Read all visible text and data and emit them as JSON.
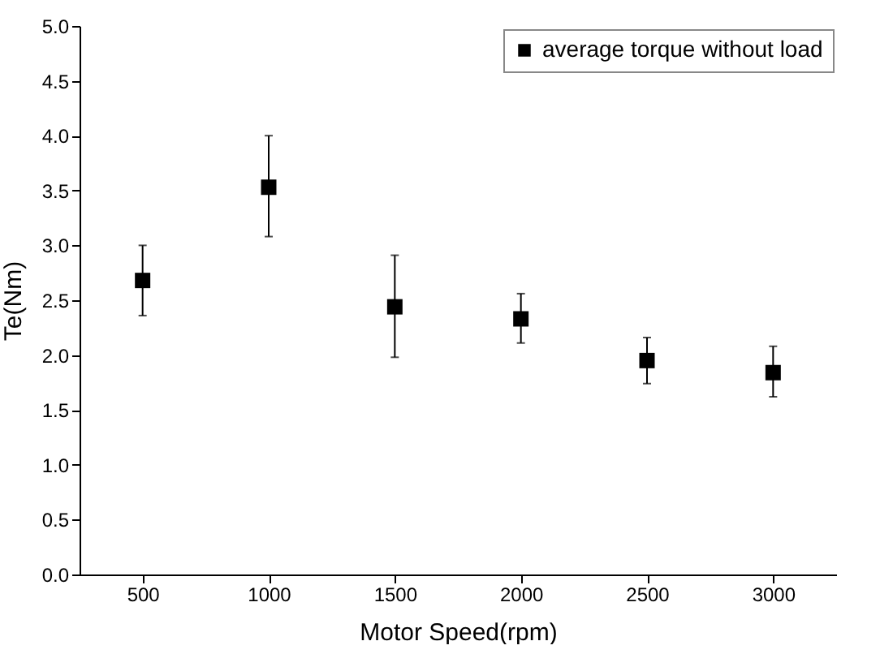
{
  "chart_data": {
    "type": "scatter",
    "xlabel": "Motor Speed(rpm)",
    "ylabel": "Te(Nm)",
    "x": [
      500,
      1000,
      1500,
      2000,
      2500,
      3000
    ],
    "series": [
      {
        "name": "average torque without load",
        "color": "#000000",
        "values": [
          2.68,
          3.53,
          2.44,
          2.33,
          1.95,
          1.84
        ],
        "errors": [
          [
            2.36,
            3.0
          ],
          [
            3.08,
            4.0
          ],
          [
            1.98,
            2.91
          ],
          [
            2.11,
            2.56
          ],
          [
            1.74,
            2.16
          ],
          [
            1.62,
            2.08
          ]
        ]
      }
    ],
    "xlim": [
      250,
      3250
    ],
    "xticks": [
      500,
      1000,
      1500,
      2000,
      2500,
      3000
    ],
    "ylim": [
      0,
      5
    ],
    "yticks": [
      {
        "value": 0,
        "label": "0.0"
      },
      0.5,
      {
        "value": 1,
        "label": "1.0"
      },
      1.5,
      {
        "value": 2,
        "label": "2.0"
      },
      2.5,
      {
        "value": 3,
        "label": "3.0"
      },
      3.5,
      {
        "value": 4,
        "label": "4.0"
      },
      4.5,
      {
        "value": 5,
        "label": "5.0"
      }
    ],
    "grid": false,
    "legend": "top right",
    "marker": "square"
  }
}
